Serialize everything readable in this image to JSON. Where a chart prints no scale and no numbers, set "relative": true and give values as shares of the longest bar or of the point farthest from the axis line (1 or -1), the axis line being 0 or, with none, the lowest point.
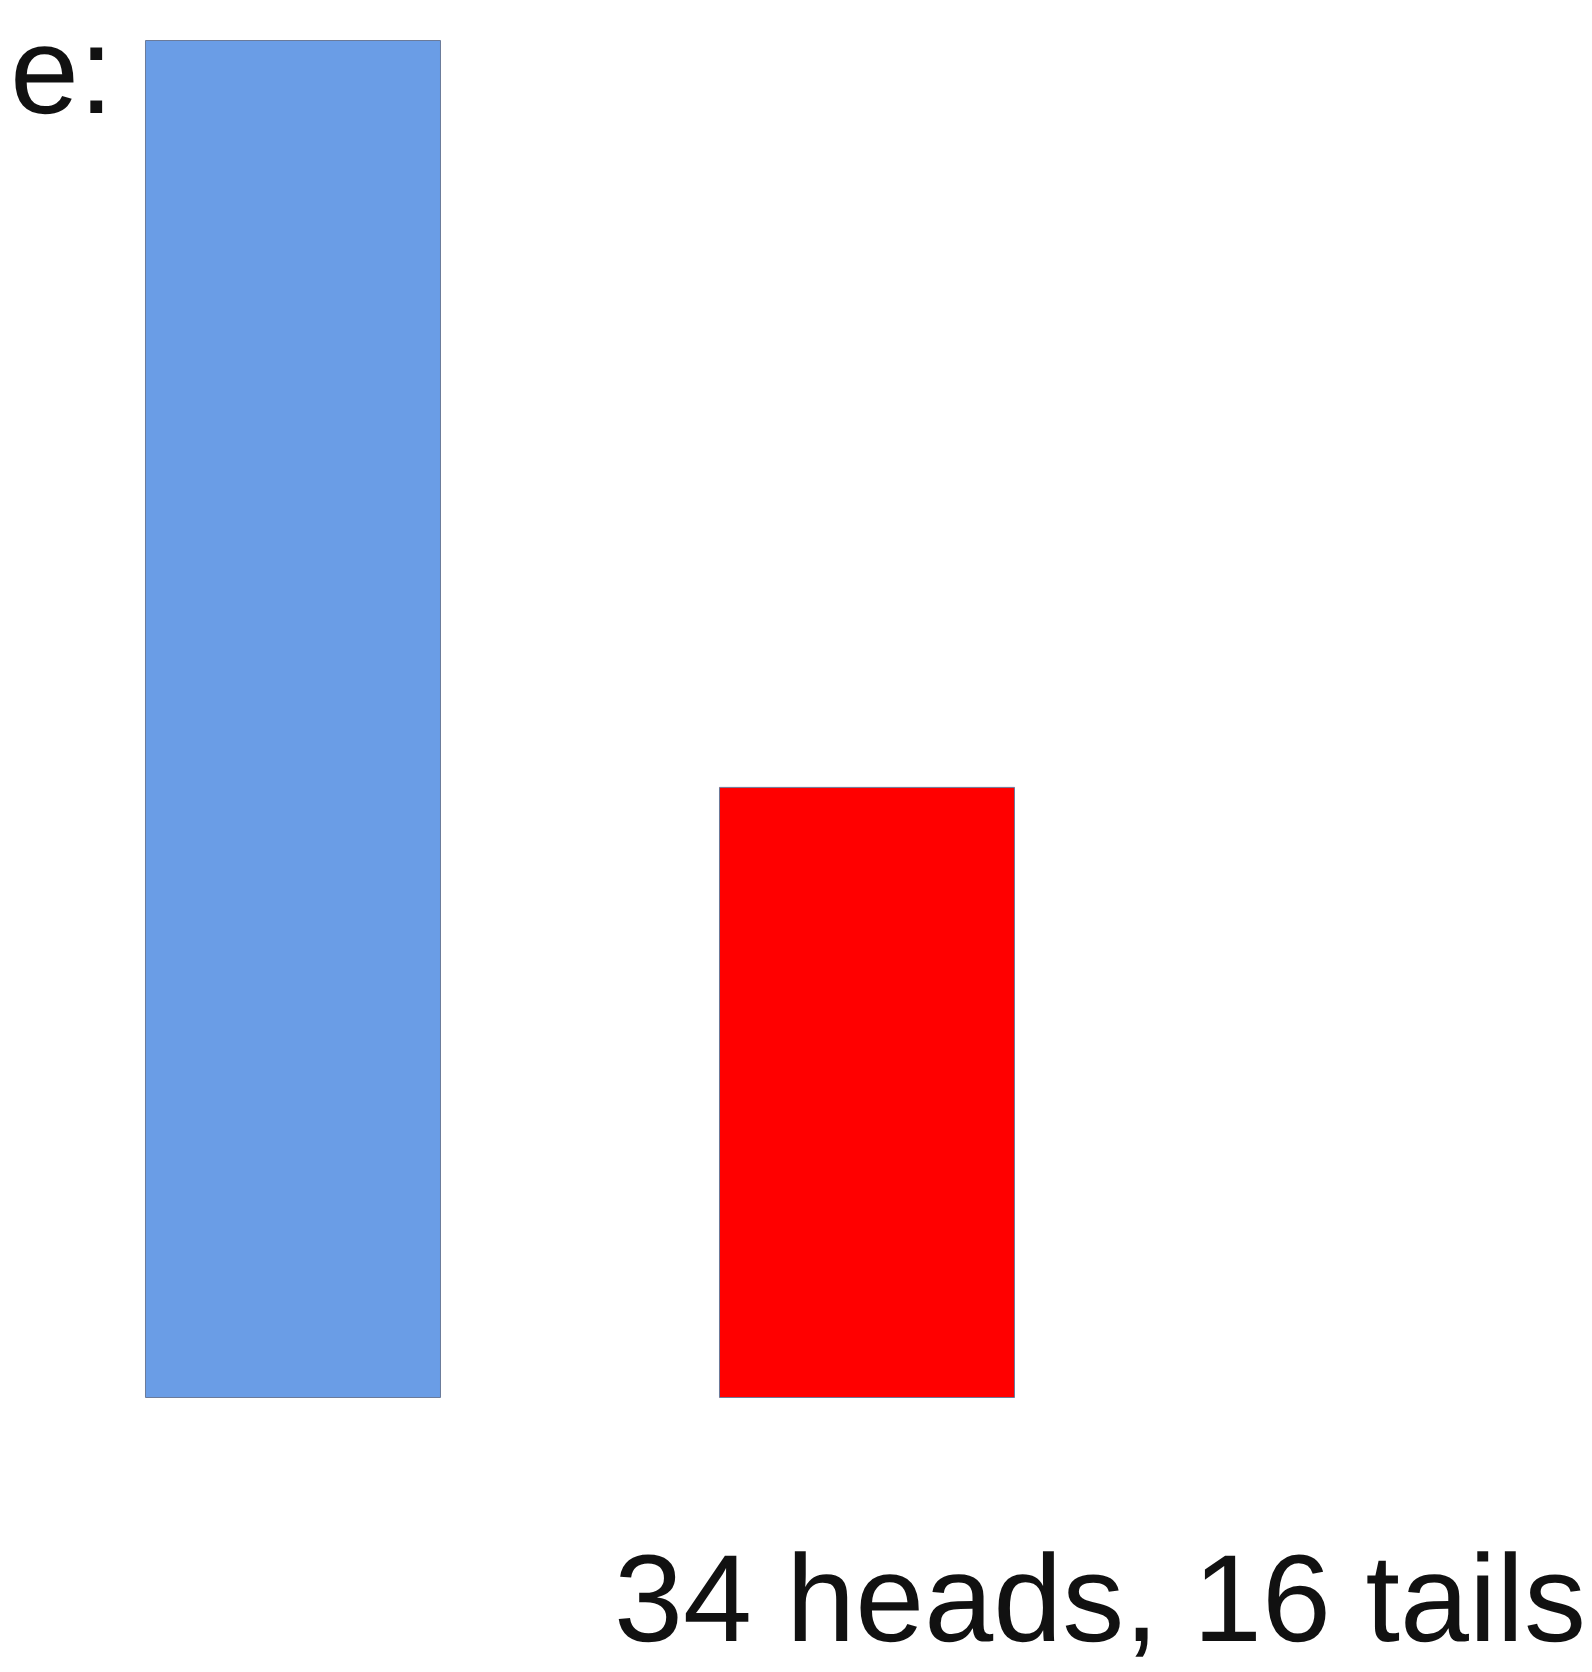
{
  "chart_data": {
    "type": "bar",
    "title": "e:",
    "xlabel": "34 heads, 16 tails",
    "categories": [
      null,
      null
    ],
    "values": [
      1,
      0.45
    ],
    "colors": [
      "#6a9de6",
      "#ff0000"
    ],
    "relative": true
  }
}
